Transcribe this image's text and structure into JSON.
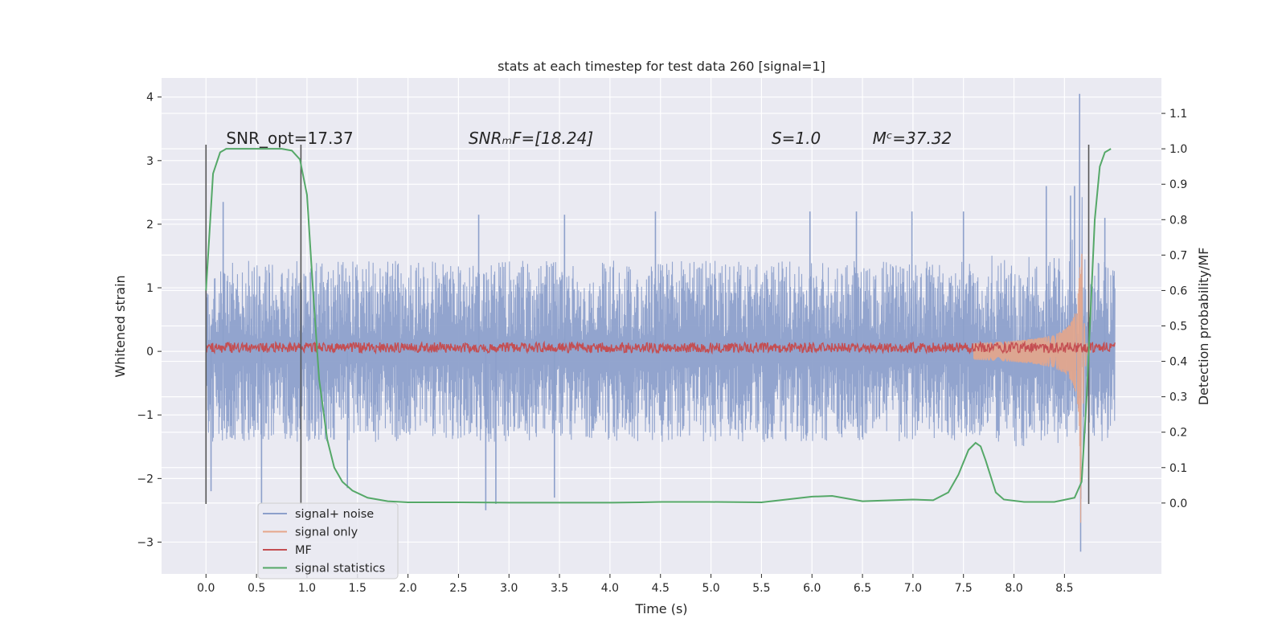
{
  "chart_data": {
    "type": "line",
    "title": "stats at each timestep for test data 260 [signal=1]",
    "xlabel": "Time (s)",
    "ylabel": "Whitened strain",
    "ylabel_right": "Detection probability/MF",
    "xlim": [
      -0.44,
      9.46
    ],
    "ylim": [
      -3.5,
      4.3
    ],
    "ylim_right": [
      -0.2,
      1.2
    ],
    "xticks": [
      "0.0",
      "0.5",
      "1.0",
      "1.5",
      "2.0",
      "2.5",
      "3.0",
      "3.5",
      "4.0",
      "4.5",
      "5.0",
      "5.5",
      "6.0",
      "6.5",
      "7.0",
      "7.5",
      "8.0",
      "8.5"
    ],
    "yticks": [
      "−3",
      "−2",
      "−1",
      "0",
      "1",
      "2",
      "3",
      "4"
    ],
    "yticks_right": [
      "0.0",
      "0.1",
      "0.2",
      "0.3",
      "0.4",
      "0.5",
      "0.6",
      "0.7",
      "0.8",
      "0.9",
      "1.0",
      "1.1"
    ],
    "grid": true,
    "legend_position": "lower-left",
    "annotations": [
      {
        "id": "snr_opt",
        "text": "SNR_opt=17.37",
        "x": 0.2,
        "y": 3.25
      },
      {
        "id": "snr_mf",
        "text": "SNRₘF=[18.24]",
        "x": 2.6,
        "y": 3.25
      },
      {
        "id": "s",
        "text": "S=1.0",
        "x": 5.6,
        "y": 3.25
      },
      {
        "id": "mc",
        "text": "Mᶜ=37.32",
        "x": 6.6,
        "y": 3.25
      }
    ],
    "vlines": [
      {
        "x": 0.0,
        "ymin": -2.4,
        "ymax": 3.25
      },
      {
        "x": 0.94,
        "ymin": -2.4,
        "ymax": 3.25
      },
      {
        "x": 8.74,
        "ymin": -2.4,
        "ymax": 3.25
      }
    ],
    "series": [
      {
        "name": "signal+ noise",
        "color": "#8da0cb",
        "x_range": [
          0.0,
          9.0
        ],
        "envelope_hi": 1.4,
        "envelope_lo": -1.4,
        "band_hi": 0.9,
        "band_lo": -0.85,
        "peaks": [
          {
            "x": 0.05,
            "y": -2.2
          },
          {
            "x": 0.17,
            "y": 2.35
          },
          {
            "x": 0.55,
            "y": -2.4
          },
          {
            "x": 1.4,
            "y": -2.15
          },
          {
            "x": 2.7,
            "y": 2.15
          },
          {
            "x": 2.77,
            "y": -2.5
          },
          {
            "x": 2.87,
            "y": -2.4
          },
          {
            "x": 3.55,
            "y": 2.15
          },
          {
            "x": 3.45,
            "y": -2.3
          },
          {
            "x": 4.45,
            "y": 2.2
          },
          {
            "x": 5.98,
            "y": 2.2
          },
          {
            "x": 6.44,
            "y": 2.2
          },
          {
            "x": 6.99,
            "y": 2.2
          },
          {
            "x": 7.5,
            "y": 2.2
          },
          {
            "x": 8.32,
            "y": 2.6
          },
          {
            "x": 8.56,
            "y": 2.45
          },
          {
            "x": 8.6,
            "y": 2.6
          },
          {
            "x": 8.65,
            "y": 4.05
          },
          {
            "x": 8.66,
            "y": -3.15
          },
          {
            "x": 8.9,
            "y": 2.1
          }
        ]
      },
      {
        "name": "signal only",
        "color": "#e5a68b",
        "chirp": {
          "x_start": 7.6,
          "x_merge": 8.66,
          "x_end": 8.76,
          "amp_start": 0.03,
          "amp_peak": 3.0,
          "amp_neg_peak": -2.85
        }
      },
      {
        "name": "MF",
        "color": "#c44e52",
        "x_range": [
          0.0,
          9.0
        ],
        "mean": 0.06,
        "half_width": 0.08
      },
      {
        "name": "signal statistics",
        "color": "#55a868",
        "axis": "right",
        "x": [
          0.0,
          0.07,
          0.14,
          0.2,
          0.3,
          0.5,
          0.75,
          0.85,
          0.93,
          1.0,
          1.06,
          1.12,
          1.2,
          1.27,
          1.35,
          1.45,
          1.6,
          1.8,
          2.0,
          2.5,
          3.0,
          3.5,
          4.0,
          4.3,
          4.5,
          5.0,
          5.5,
          6.0,
          6.2,
          6.5,
          7.0,
          7.2,
          7.35,
          7.45,
          7.55,
          7.62,
          7.67,
          7.72,
          7.82,
          7.9,
          8.1,
          8.4,
          8.6,
          8.67,
          8.72,
          8.76,
          8.8,
          8.85,
          8.9,
          8.96
        ],
        "y": [
          0.6,
          0.93,
          0.99,
          1.0,
          1.0,
          1.0,
          1.0,
          0.995,
          0.97,
          0.87,
          0.6,
          0.35,
          0.18,
          0.1,
          0.06,
          0.035,
          0.015,
          0.005,
          0.002,
          0.002,
          0.001,
          0.001,
          0.001,
          0.002,
          0.003,
          0.003,
          0.002,
          0.018,
          0.02,
          0.005,
          0.01,
          0.008,
          0.03,
          0.08,
          0.15,
          0.17,
          0.16,
          0.12,
          0.03,
          0.01,
          0.003,
          0.003,
          0.015,
          0.06,
          0.3,
          0.55,
          0.8,
          0.95,
          0.99,
          1.0
        ]
      }
    ]
  }
}
